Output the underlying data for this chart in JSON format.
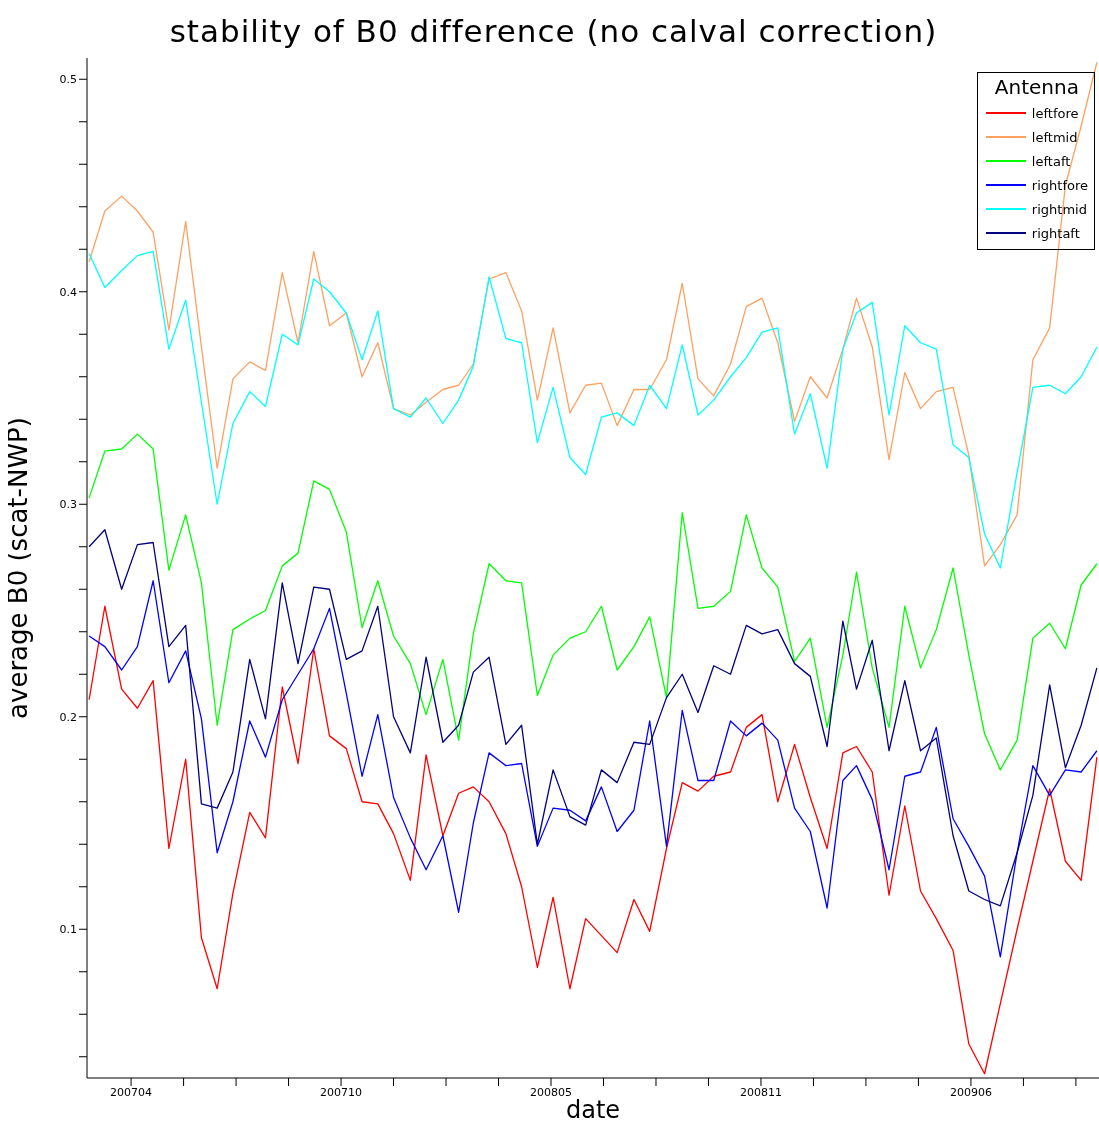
{
  "chart_data": {
    "type": "line",
    "title": "stability of B0 difference (no calval correction)",
    "xlabel": "date",
    "ylabel": "average B0 (scat-NWP)",
    "legend_title": "Antenna",
    "legend": "top right",
    "marker": "none",
    "line_style": "solid",
    "x": [
      "2007-03-01",
      "2007-03-16",
      "2007-04-01",
      "2007-04-16",
      "2007-05-01",
      "2007-05-16",
      "2007-06-01",
      "2007-06-16",
      "2007-07-01",
      "2007-07-16",
      "2007-08-01",
      "2007-08-16",
      "2007-09-01",
      "2007-09-16",
      "2007-10-01",
      "2007-10-16",
      "2007-11-01",
      "2007-11-16",
      "2007-12-01",
      "2007-12-16",
      "2008-01-01",
      "2008-01-16",
      "2008-02-01",
      "2008-02-16",
      "2008-03-01",
      "2008-03-16",
      "2008-04-01",
      "2008-04-16",
      "2008-05-01",
      "2008-05-16",
      "2008-06-01",
      "2008-06-16",
      "2008-07-01",
      "2008-07-16",
      "2008-08-01",
      "2008-08-16",
      "2008-09-01",
      "2008-09-16",
      "2008-10-01",
      "2008-10-16",
      "2008-11-01",
      "2008-11-16",
      "2008-12-01",
      "2008-12-16",
      "2009-01-01",
      "2009-01-16",
      "2009-02-01",
      "2009-02-16",
      "2009-03-01",
      "2009-03-16",
      "2009-04-01",
      "2009-04-16",
      "2009-05-01",
      "2009-05-16",
      "2009-06-01",
      "2009-06-16",
      "2009-07-01",
      "2009-07-16",
      "2009-08-01",
      "2009-08-16",
      "2009-09-01",
      "2009-09-16",
      "2009-10-01",
      "2009-10-16"
    ],
    "series": [
      {
        "name": "leftfore",
        "color": "#ff0000",
        "values": [
          0.208,
          0.252,
          0.213,
          0.204,
          0.217,
          0.138,
          0.18,
          0.096,
          0.072,
          0.117,
          0.155,
          0.143,
          0.214,
          0.178,
          0.232,
          0.191,
          0.185,
          0.16,
          0.159,
          0.145,
          0.123,
          0.182,
          0.144,
          0.164,
          0.167,
          0.16,
          0.145,
          0.12,
          0.082,
          0.115,
          0.072,
          0.105,
          0.097,
          0.089,
          0.114,
          0.099,
          0.138,
          0.169,
          0.165,
          0.172,
          0.174,
          0.195,
          0.201,
          0.16,
          0.187,
          0.162,
          0.138,
          0.183,
          0.186,
          0.174,
          0.116,
          0.158,
          0.118,
          0.105,
          0.09,
          0.046,
          0.032,
          0.065,
          0.1,
          0.132,
          0.166,
          0.132,
          0.123,
          0.181
        ]
      },
      {
        "name": "leftmid",
        "color": "#ffa060",
        "values": [
          0.414,
          0.438,
          0.445,
          0.438,
          0.428,
          0.382,
          0.433,
          0.374,
          0.317,
          0.359,
          0.367,
          0.363,
          0.409,
          0.376,
          0.419,
          0.384,
          0.39,
          0.36,
          0.376,
          0.345,
          0.342,
          0.348,
          0.354,
          0.356,
          0.366,
          0.406,
          0.409,
          0.391,
          0.349,
          0.383,
          0.343,
          0.356,
          0.357,
          0.337,
          0.354,
          0.354,
          0.368,
          0.404,
          0.359,
          0.351,
          0.366,
          0.393,
          0.397,
          0.376,
          0.339,
          0.36,
          0.35,
          0.373,
          0.397,
          0.374,
          0.321,
          0.362,
          0.345,
          0.353,
          0.355,
          0.323,
          0.271,
          0.281,
          0.295,
          0.368,
          0.383,
          0.45,
          0.478,
          0.508
        ]
      },
      {
        "name": "leftaft",
        "color": "#00ff00",
        "values": [
          0.303,
          0.325,
          0.326,
          0.333,
          0.326,
          0.269,
          0.295,
          0.263,
          0.196,
          0.241,
          0.246,
          0.25,
          0.271,
          0.277,
          0.311,
          0.307,
          0.287,
          0.242,
          0.264,
          0.238,
          0.225,
          0.201,
          0.227,
          0.189,
          0.239,
          0.272,
          0.264,
          0.263,
          0.21,
          0.229,
          0.237,
          0.24,
          0.252,
          0.222,
          0.233,
          0.247,
          0.209,
          0.296,
          0.251,
          0.252,
          0.259,
          0.295,
          0.27,
          0.261,
          0.226,
          0.237,
          0.195,
          0.229,
          0.268,
          0.223,
          0.195,
          0.252,
          0.223,
          0.241,
          0.27,
          0.229,
          0.192,
          0.175,
          0.189,
          0.237,
          0.244,
          0.232,
          0.262,
          0.272
        ]
      },
      {
        "name": "rightfore",
        "color": "#0000ff",
        "values": [
          0.238,
          0.233,
          0.222,
          0.233,
          0.264,
          0.216,
          0.231,
          0.199,
          0.136,
          0.16,
          0.198,
          0.181,
          0.208,
          0.22,
          0.232,
          0.251,
          0.211,
          0.172,
          0.201,
          0.162,
          0.143,
          0.128,
          0.144,
          0.108,
          0.15,
          0.183,
          0.177,
          0.178,
          0.139,
          0.157,
          0.156,
          0.151,
          0.167,
          0.146,
          0.156,
          0.198,
          0.139,
          0.203,
          0.17,
          0.17,
          0.198,
          0.191,
          0.197,
          0.189,
          0.157,
          0.146,
          0.11,
          0.17,
          0.177,
          0.161,
          0.128,
          0.172,
          0.174,
          0.195,
          0.152,
          0.139,
          0.125,
          0.087,
          0.136,
          0.177,
          0.163,
          0.175,
          0.174,
          0.184
        ]
      },
      {
        "name": "rightmid",
        "color": "#00ffff",
        "values": [
          0.418,
          0.402,
          0.41,
          0.417,
          0.419,
          0.373,
          0.396,
          0.348,
          0.3,
          0.338,
          0.353,
          0.346,
          0.38,
          0.375,
          0.406,
          0.4,
          0.39,
          0.368,
          0.391,
          0.345,
          0.341,
          0.35,
          0.338,
          0.349,
          0.365,
          0.407,
          0.378,
          0.376,
          0.329,
          0.355,
          0.322,
          0.314,
          0.341,
          0.343,
          0.337,
          0.356,
          0.345,
          0.375,
          0.342,
          0.349,
          0.36,
          0.369,
          0.381,
          0.383,
          0.333,
          0.352,
          0.317,
          0.373,
          0.39,
          0.395,
          0.342,
          0.384,
          0.376,
          0.373,
          0.328,
          0.322,
          0.286,
          0.27,
          0.315,
          0.355,
          0.356,
          0.352,
          0.36,
          0.374
        ]
      },
      {
        "name": "rightaft",
        "color": "#000080",
        "values": [
          0.28,
          0.288,
          0.26,
          0.281,
          0.282,
          0.233,
          0.243,
          0.159,
          0.157,
          0.174,
          0.227,
          0.199,
          0.263,
          0.225,
          0.261,
          0.26,
          0.227,
          0.231,
          0.252,
          0.2,
          0.183,
          0.228,
          0.188,
          0.196,
          0.221,
          0.228,
          0.187,
          0.196,
          0.14,
          0.175,
          0.153,
          0.149,
          0.175,
          0.169,
          0.188,
          0.187,
          0.209,
          0.22,
          0.202,
          0.224,
          0.22,
          0.243,
          0.239,
          0.241,
          0.225,
          0.219,
          0.186,
          0.245,
          0.213,
          0.236,
          0.184,
          0.217,
          0.184,
          0.19,
          0.144,
          0.118,
          0.114,
          0.111,
          0.136,
          0.163,
          0.215,
          0.176,
          0.196,
          0.223
        ]
      }
    ],
    "xlim": [
      "2007-02-27",
      "2009-10-18"
    ],
    "xticks": [
      {
        "value": "2007-04-10",
        "label": "200704"
      },
      {
        "value": "2007-05-30",
        "label": null
      },
      {
        "value": "2007-07-19",
        "label": null
      },
      {
        "value": "2007-09-07",
        "label": null
      },
      {
        "value": "2007-10-27",
        "label": "200710"
      },
      {
        "value": "2007-12-16",
        "label": null
      },
      {
        "value": "2008-02-04",
        "label": null
      },
      {
        "value": "2008-03-25",
        "label": null
      },
      {
        "value": "2008-05-14",
        "label": "200805"
      },
      {
        "value": "2008-07-03",
        "label": null
      },
      {
        "value": "2008-08-22",
        "label": null
      },
      {
        "value": "2008-10-11",
        "label": null
      },
      {
        "value": "2008-11-30",
        "label": "200811"
      },
      {
        "value": "2009-01-19",
        "label": null
      },
      {
        "value": "2009-03-10",
        "label": null
      },
      {
        "value": "2009-04-29",
        "label": null
      },
      {
        "value": "2009-06-18",
        "label": "200906"
      },
      {
        "value": "2009-08-07",
        "label": null
      },
      {
        "value": "2009-09-26",
        "label": null
      }
    ],
    "ylim": [
      0.03,
      0.51
    ],
    "yticks": [
      {
        "value": 0.04,
        "label": null
      },
      {
        "value": 0.06,
        "label": null
      },
      {
        "value": 0.08,
        "label": null
      },
      0.1,
      {
        "value": 0.12,
        "label": null
      },
      {
        "value": 0.14,
        "label": null
      },
      {
        "value": 0.16,
        "label": null
      },
      {
        "value": 0.18,
        "label": null
      },
      0.2,
      {
        "value": 0.22,
        "label": null
      },
      {
        "value": 0.24,
        "label": null
      },
      {
        "value": 0.26,
        "label": null
      },
      {
        "value": 0.28,
        "label": null
      },
      0.3,
      {
        "value": 0.32,
        "label": null
      },
      {
        "value": 0.34,
        "label": null
      },
      {
        "value": 0.36,
        "label": null
      },
      {
        "value": 0.38,
        "label": null
      },
      0.4,
      {
        "value": 0.42,
        "label": null
      },
      {
        "value": 0.44,
        "label": null
      },
      {
        "value": 0.46,
        "label": null
      },
      {
        "value": 0.48,
        "label": null
      },
      0.5
    ]
  }
}
